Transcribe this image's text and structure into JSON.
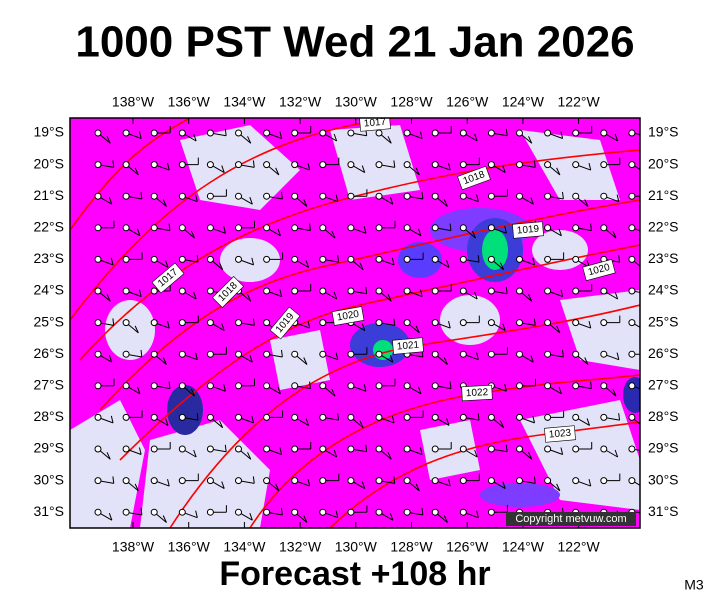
{
  "title": "1000 PST Wed 21 Jan 2026",
  "footer": "Forecast +108 hr",
  "model": "M3",
  "copyright": "Copyright metvuw.com",
  "longitudes": [
    "138°W",
    "136°W",
    "134°W",
    "132°W",
    "130°W",
    "128°W",
    "126°W",
    "124°W",
    "122°W"
  ],
  "latitudes": [
    "19°S",
    "20°S",
    "21°S",
    "22°S",
    "23°S",
    "24°S",
    "25°S",
    "26°S",
    "27°S",
    "28°S",
    "29°S",
    "30°S",
    "31°S"
  ],
  "isobar_labels": [
    "1017",
    "1017",
    "1018",
    "1018",
    "1019",
    "1019",
    "1020",
    "1020",
    "1021",
    "1022",
    "1023"
  ]
}
